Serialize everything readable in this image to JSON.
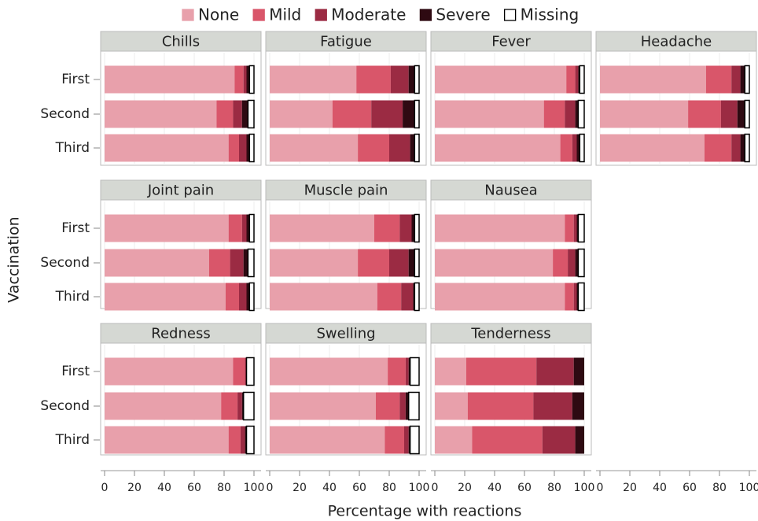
{
  "chart_data": {
    "type": "bar",
    "orientation": "horizontal",
    "stacked": true,
    "grid": true,
    "xlabel": "Percentage with reactions",
    "ylabel": "Vaccination",
    "categories": [
      "First",
      "Second",
      "Third"
    ],
    "xlim": [
      0,
      100
    ],
    "xticks": [
      0,
      20,
      40,
      60,
      80,
      100
    ],
    "series": [
      {
        "name": "None",
        "color": "#e8a0ab"
      },
      {
        "name": "Mild",
        "color": "#d9566a"
      },
      {
        "name": "Moderate",
        "color": "#9b2b43"
      },
      {
        "name": "Severe",
        "color": "#2e0a12"
      },
      {
        "name": "Missing",
        "color": "#ffffff"
      }
    ],
    "panels": [
      {
        "title": "Chills",
        "series": [
          {
            "values": [
              87,
              75,
              83
            ]
          },
          {
            "values": [
              6,
              11,
              7
            ]
          },
          {
            "values": [
              2,
              6,
              5
            ]
          },
          {
            "values": [
              2,
              4,
              2
            ]
          },
          {
            "values": [
              3,
              4,
              3
            ]
          }
        ]
      },
      {
        "title": "Fatigue",
        "series": [
          {
            "values": [
              58,
              42,
              59
            ]
          },
          {
            "values": [
              23,
              26,
              21
            ]
          },
          {
            "values": [
              12,
              21,
              14
            ]
          },
          {
            "values": [
              4,
              8,
              3
            ]
          },
          {
            "values": [
              3,
              3,
              3
            ]
          }
        ]
      },
      {
        "title": "Fever",
        "series": [
          {
            "values": [
              88,
              73,
              84
            ]
          },
          {
            "values": [
              6,
              14,
              8
            ]
          },
          {
            "values": [
              2,
              7,
              3
            ]
          },
          {
            "values": [
              1,
              2,
              2
            ]
          },
          {
            "values": [
              3,
              4,
              3
            ]
          }
        ]
      },
      {
        "title": "Headache",
        "series": [
          {
            "values": [
              71,
              59,
              70
            ]
          },
          {
            "values": [
              17,
              22,
              18
            ]
          },
          {
            "values": [
              6,
              11,
              6
            ]
          },
          {
            "values": [
              3,
              5,
              3
            ]
          },
          {
            "values": [
              3,
              3,
              3
            ]
          }
        ]
      },
      {
        "title": "Joint pain",
        "series": [
          {
            "values": [
              83,
              70,
              81
            ]
          },
          {
            "values": [
              9,
              14,
              9
            ]
          },
          {
            "values": [
              3,
              9,
              5
            ]
          },
          {
            "values": [
              2,
              3,
              2
            ]
          },
          {
            "values": [
              3,
              4,
              3
            ]
          }
        ]
      },
      {
        "title": "Muscle pain",
        "series": [
          {
            "values": [
              70,
              59,
              72
            ]
          },
          {
            "values": [
              17,
              21,
              16
            ]
          },
          {
            "values": [
              8,
              13,
              8
            ]
          },
          {
            "values": [
              2,
              4,
              1
            ]
          },
          {
            "values": [
              3,
              3,
              3
            ]
          }
        ]
      },
      {
        "title": "Nausea",
        "series": [
          {
            "values": [
              87,
              79,
              87
            ]
          },
          {
            "values": [
              6,
              10,
              6
            ]
          },
          {
            "values": [
              2,
              5,
              2
            ]
          },
          {
            "values": [
              1,
              2,
              1
            ]
          },
          {
            "values": [
              4,
              4,
              4
            ]
          }
        ]
      },
      {
        "title": "Redness",
        "series": [
          {
            "values": [
              86,
              78,
              83
            ]
          },
          {
            "values": [
              8,
              11,
              8
            ]
          },
          {
            "values": [
              1,
              3,
              3
            ]
          },
          {
            "values": [
              0,
              1,
              1
            ]
          },
          {
            "values": [
              5,
              7,
              5
            ]
          }
        ]
      },
      {
        "title": "Swelling",
        "series": [
          {
            "values": [
              79,
              71,
              77
            ]
          },
          {
            "values": [
              12,
              16,
              13
            ]
          },
          {
            "values": [
              2,
              4,
              3
            ]
          },
          {
            "values": [
              1,
              2,
              1
            ]
          },
          {
            "values": [
              6,
              7,
              6
            ]
          }
        ]
      },
      {
        "title": "Tenderness",
        "series": [
          {
            "values": [
              21,
              22,
              25
            ]
          },
          {
            "values": [
              47,
              44,
              47
            ]
          },
          {
            "values": [
              25,
              26,
              22
            ]
          },
          {
            "values": [
              7,
              8,
              6
            ]
          },
          {
            "values": [
              0,
              0,
              0
            ]
          }
        ]
      }
    ]
  }
}
